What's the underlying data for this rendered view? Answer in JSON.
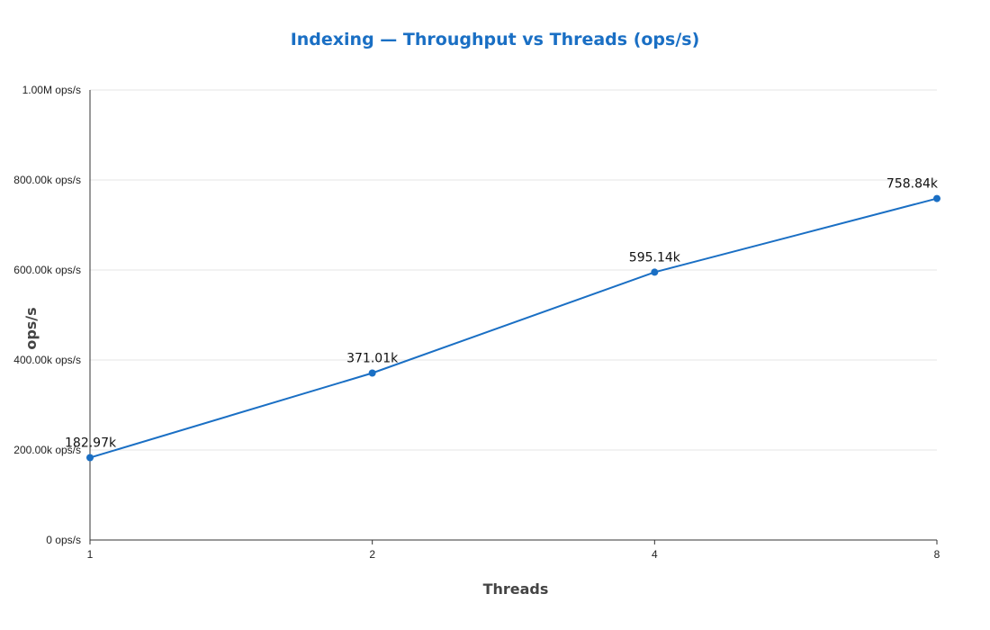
{
  "chart_data": {
    "type": "line",
    "title": "Indexing — Throughput vs Threads (ops/s)",
    "xlabel": "Threads",
    "ylabel": "ops/s",
    "categories": [
      "1",
      "2",
      "4",
      "8"
    ],
    "series": [
      {
        "values": [
          182970,
          371010,
          595140,
          758840
        ],
        "data_labels": [
          "182.97k",
          "371.01k",
          "595.14k",
          "758.84k"
        ],
        "color": "#1a6fc4"
      }
    ],
    "ylim": [
      0,
      1000000
    ],
    "yticks": [
      0,
      200000,
      400000,
      600000,
      800000,
      1000000
    ],
    "ytick_labels": [
      "0 ops/s",
      "200.00k ops/s",
      "400.00k ops/s",
      "600.00k ops/s",
      "800.00k ops/s",
      "1.00M ops/s"
    ],
    "grid": true,
    "legend": "none"
  }
}
